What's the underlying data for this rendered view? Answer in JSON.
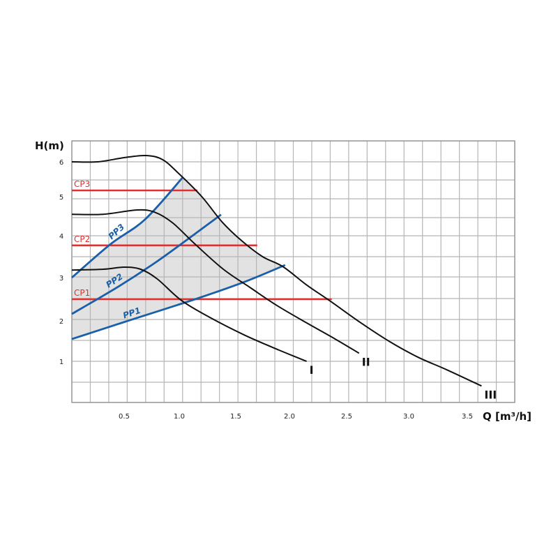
{
  "chart_data": {
    "type": "line",
    "title": "",
    "xlabel": "Q [m³/h]",
    "ylabel": "H(m)",
    "xlim": [
      0,
      3.9
    ],
    "ylim": [
      0,
      6.5
    ],
    "grid": true,
    "x_ticks": [
      "0.5",
      "1.0",
      "1.5",
      "2.0",
      "2.5",
      "3.0",
      "3.5"
    ],
    "y_ticks": [
      "1",
      "2",
      "3",
      "4",
      "5",
      "6"
    ],
    "colors": {
      "speed": "#111111",
      "pp": "#1a5fa8",
      "cp": "#e03030",
      "area": "#e2e2e2",
      "grid": "#b5b5b5"
    },
    "speed_curves": [
      {
        "name": "I",
        "points": [
          [
            0,
            3.18
          ],
          [
            0.3,
            3.2
          ],
          [
            0.5,
            3.25
          ],
          [
            0.65,
            3.2
          ],
          [
            0.8,
            2.97
          ],
          [
            1.02,
            2.47
          ],
          [
            1.27,
            2.08
          ],
          [
            1.58,
            1.65
          ],
          [
            1.9,
            1.28
          ],
          [
            2.15,
            1.0
          ]
        ]
      },
      {
        "name": "II",
        "points": [
          [
            0,
            4.55
          ],
          [
            0.3,
            4.55
          ],
          [
            0.62,
            4.66
          ],
          [
            0.78,
            4.6
          ],
          [
            0.94,
            4.33
          ],
          [
            1.14,
            3.8
          ],
          [
            1.39,
            3.2
          ],
          [
            1.64,
            2.76
          ],
          [
            1.88,
            2.36
          ],
          [
            2.15,
            1.95
          ],
          [
            2.4,
            1.55
          ],
          [
            2.6,
            1.2
          ]
        ]
      },
      {
        "name": "III",
        "points": [
          [
            0,
            6.0
          ],
          [
            0.25,
            6.0
          ],
          [
            0.5,
            6.1
          ],
          [
            0.7,
            6.15
          ],
          [
            0.85,
            6.05
          ],
          [
            1.0,
            5.65
          ],
          [
            1.2,
            5.0
          ],
          [
            1.38,
            4.35
          ],
          [
            1.56,
            3.87
          ],
          [
            1.75,
            3.5
          ],
          [
            1.94,
            3.26
          ],
          [
            2.15,
            2.83
          ],
          [
            2.36,
            2.45
          ],
          [
            2.61,
            1.96
          ],
          [
            2.85,
            1.48
          ],
          [
            3.08,
            1.1
          ],
          [
            3.32,
            0.8
          ],
          [
            3.62,
            0.4
          ]
        ]
      }
    ],
    "proportional_pressure": [
      {
        "name": "PP1",
        "points": [
          [
            0,
            1.55
          ],
          [
            0.5,
            1.97
          ],
          [
            1.14,
            2.5
          ],
          [
            1.58,
            2.9
          ],
          [
            1.96,
            3.3
          ]
        ]
      },
      {
        "name": "PP2",
        "points": [
          [
            0,
            2.16
          ],
          [
            0.45,
            2.8
          ],
          [
            0.8,
            3.39
          ],
          [
            1.14,
            4.05
          ],
          [
            1.37,
            4.54
          ]
        ]
      },
      {
        "name": "PP3",
        "points": [
          [
            0,
            3.0
          ],
          [
            0.37,
            3.8
          ],
          [
            0.69,
            4.42
          ],
          [
            1.03,
            5.55
          ]
        ]
      }
    ],
    "constant_pressure": [
      {
        "name": "CP1",
        "head": 2.5,
        "q_max": 2.37
      },
      {
        "name": "CP2",
        "head": 3.77,
        "q_max": 1.7
      },
      {
        "name": "CP3",
        "head": 5.18,
        "q_max": 1.16
      }
    ]
  }
}
